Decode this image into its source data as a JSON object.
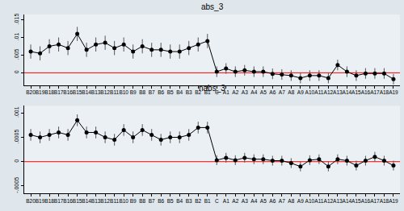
{
  "chart_data": [
    {
      "type": "line",
      "title": "abs_3",
      "categories": [
        "B20",
        "B19",
        "B18",
        "B17",
        "B16",
        "B15",
        "B14",
        "B13",
        "B12",
        "B11",
        "B10",
        "B9",
        "B8",
        "B7",
        "B6",
        "B5",
        "B4",
        "B3",
        "B2",
        "B1",
        "C",
        "A1",
        "A2",
        "A3",
        "A4",
        "A5",
        "A6",
        "A7",
        "A8",
        "A9",
        "A10",
        "A11",
        "A12",
        "A13",
        "A14",
        "A15",
        "A16",
        "A17",
        "A18",
        "A19"
      ],
      "values": [
        0.006,
        0.0055,
        0.0075,
        0.008,
        0.007,
        0.011,
        0.0065,
        0.008,
        0.0085,
        0.007,
        0.008,
        0.006,
        0.0075,
        0.0065,
        0.0065,
        0.006,
        0.006,
        0.007,
        0.008,
        0.009,
        0.0003,
        0.0012,
        0.0003,
        0.0007,
        0.0003,
        0.0003,
        -0.0003,
        -0.0005,
        -0.0008,
        -0.0015,
        -0.0008,
        -0.0008,
        -0.0015,
        0.0022,
        0.0003,
        -0.0008,
        -0.0002,
        -0.0002,
        -0.0002,
        -0.0018
      ],
      "errors": [
        0.002,
        0.002,
        0.002,
        0.002,
        0.002,
        0.002,
        0.002,
        0.002,
        0.002,
        0.002,
        0.002,
        0.002,
        0.002,
        0.002,
        0.002,
        0.002,
        0.002,
        0.002,
        0.002,
        0.002,
        0.0015,
        0.0015,
        0.0015,
        0.0015,
        0.0015,
        0.0015,
        0.0015,
        0.0015,
        0.0015,
        0.0015,
        0.0015,
        0.0015,
        0.0015,
        0.0015,
        0.0015,
        0.0015,
        0.0015,
        0.0015,
        0.0015,
        0.0015
      ],
      "color": "#000000",
      "marker": "circle",
      "hline": 0,
      "ylim": [
        -0.0035,
        0.0165
      ],
      "yticks": [
        {
          "value": 0,
          "label": "0"
        },
        {
          "value": 0.005,
          "label": ".005"
        },
        {
          "value": 0.01,
          "label": ".01"
        },
        {
          "value": 0.015,
          "label": ".015"
        }
      ],
      "grid": false
    },
    {
      "type": "line",
      "title": "nabs_3",
      "categories": [
        "B20",
        "B19",
        "B18",
        "B17",
        "B16",
        "B15",
        "B14",
        "B13",
        "B12",
        "B11",
        "B10",
        "B9",
        "B8",
        "B7",
        "B6",
        "B5",
        "B4",
        "B3",
        "B2",
        "B1",
        "C",
        "A1",
        "A2",
        "A3",
        "A4",
        "A5",
        "A6",
        "A7",
        "A8",
        "A9",
        "A10",
        "A11",
        "A12",
        "A13",
        "A14",
        "A15",
        "A16",
        "A17",
        "A18",
        "A19"
      ],
      "values": [
        0.00055,
        0.0005,
        0.00055,
        0.0006,
        0.00055,
        0.00085,
        0.0006,
        0.0006,
        0.0005,
        0.00045,
        0.00065,
        0.0005,
        0.00065,
        0.00055,
        0.00045,
        0.0005,
        0.0005,
        0.00055,
        0.0007,
        0.0007,
        3e-05,
        8e-05,
        3e-05,
        8e-05,
        5e-05,
        5e-05,
        2e-05,
        2e-05,
        -3e-05,
        -0.0001,
        3e-05,
        5e-05,
        -0.0001,
        5e-05,
        2e-05,
        -8e-05,
        2e-05,
        0.0001,
        2e-05,
        -8e-05
      ],
      "errors": [
        0.00012,
        0.00012,
        0.00012,
        0.00012,
        0.00012,
        0.00012,
        0.00012,
        0.00012,
        0.00012,
        0.00012,
        0.00012,
        0.00012,
        0.00012,
        0.00012,
        0.00012,
        0.00012,
        0.00012,
        0.00012,
        0.00012,
        0.00012,
        0.0001,
        0.0001,
        0.0001,
        0.0001,
        0.0001,
        0.0001,
        0.0001,
        0.0001,
        0.0001,
        0.0001,
        0.0001,
        0.0001,
        0.0001,
        0.0001,
        0.0001,
        0.0001,
        0.0001,
        0.0001,
        0.0001,
        0.0001
      ],
      "color": "#000000",
      "marker": "circle",
      "hline": 0,
      "ylim": [
        -0.00065,
        0.00115
      ],
      "yticks": [
        {
          "value": -0.0005,
          "label": "-.0005"
        },
        {
          "value": 0,
          "label": "0"
        },
        {
          "value": 0.0005,
          "label": ".0005"
        },
        {
          "value": 0.001,
          "label": ".001"
        }
      ],
      "grid": false
    }
  ]
}
